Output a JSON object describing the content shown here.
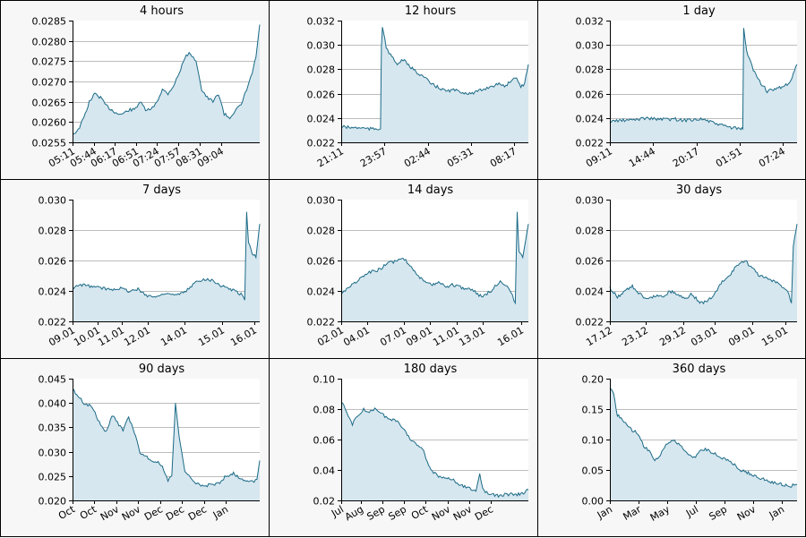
{
  "chart_data": [
    {
      "type": "area",
      "title": "4 hours",
      "ylim": [
        0.0255,
        0.0285
      ],
      "yticks": [
        "0.0255",
        "0.0260",
        "0.0265",
        "0.0270",
        "0.0275",
        "0.0280",
        "0.0285"
      ],
      "xticks": [
        "05:11",
        "05:44",
        "06:17",
        "06:51",
        "07:24",
        "07:57",
        "08:31",
        "09:04"
      ],
      "xtick_pos": [
        0,
        0.1125,
        0.225,
        0.34,
        0.452,
        0.565,
        0.68,
        0.793
      ],
      "grid": true,
      "series": [
        {
          "x": [
            0,
            0.03,
            0.06,
            0.09,
            0.12,
            0.15,
            0.18,
            0.21,
            0.24,
            0.27,
            0.3,
            0.33,
            0.36,
            0.39,
            0.42,
            0.45,
            0.48,
            0.51,
            0.54,
            0.57,
            0.6,
            0.63,
            0.66,
            0.69,
            0.72,
            0.75,
            0.78,
            0.81,
            0.84,
            0.87,
            0.9,
            0.93,
            0.96,
            0.98,
            1.0
          ],
          "values": [
            0.0257,
            0.0258,
            0.0261,
            0.0265,
            0.0267,
            0.0266,
            0.0264,
            0.0263,
            0.0262,
            0.0262,
            0.0263,
            0.0263,
            0.0265,
            0.0263,
            0.0263,
            0.0265,
            0.0268,
            0.0267,
            0.0269,
            0.0272,
            0.0276,
            0.0277,
            0.0275,
            0.0268,
            0.0266,
            0.0265,
            0.0267,
            0.0262,
            0.0261,
            0.0263,
            0.0264,
            0.0268,
            0.0272,
            0.0276,
            0.0284
          ]
        }
      ]
    },
    {
      "type": "area",
      "title": "12 hours",
      "ylim": [
        0.022,
        0.032
      ],
      "yticks": [
        "0.022",
        "0.024",
        "0.026",
        "0.028",
        "0.030",
        "0.032"
      ],
      "xticks": [
        "21:11",
        "23:57",
        "02:44",
        "05:31",
        "08:17"
      ],
      "xtick_pos": [
        0,
        0.231,
        0.463,
        0.694,
        0.925
      ],
      "grid": true,
      "series": [
        {
          "x": [
            0,
            0.05,
            0.1,
            0.15,
            0.19,
            0.21,
            0.215,
            0.22,
            0.24,
            0.27,
            0.3,
            0.33,
            0.36,
            0.4,
            0.44,
            0.48,
            0.52,
            0.56,
            0.6,
            0.65,
            0.7,
            0.75,
            0.8,
            0.85,
            0.88,
            0.9,
            0.93,
            0.96,
            0.98,
            1.0
          ],
          "values": [
            0.0233,
            0.0232,
            0.0232,
            0.0231,
            0.0231,
            0.0231,
            0.03,
            0.0315,
            0.0298,
            0.029,
            0.0284,
            0.0288,
            0.0283,
            0.0278,
            0.0274,
            0.0268,
            0.0265,
            0.0262,
            0.0263,
            0.0261,
            0.026,
            0.0263,
            0.0266,
            0.0268,
            0.0266,
            0.027,
            0.0274,
            0.0266,
            0.0268,
            0.0284
          ]
        }
      ]
    },
    {
      "type": "area",
      "title": "1 day",
      "ylim": [
        0.022,
        0.032
      ],
      "yticks": [
        "0.022",
        "0.024",
        "0.026",
        "0.028",
        "0.030",
        "0.032"
      ],
      "xticks": [
        "09:11",
        "14:44",
        "20:17",
        "01:51",
        "07:24"
      ],
      "xtick_pos": [
        0,
        0.231,
        0.463,
        0.694,
        0.925
      ],
      "grid": true,
      "series": [
        {
          "x": [
            0,
            0.05,
            0.1,
            0.15,
            0.2,
            0.25,
            0.3,
            0.35,
            0.4,
            0.45,
            0.5,
            0.55,
            0.6,
            0.65,
            0.7,
            0.71,
            0.715,
            0.73,
            0.76,
            0.8,
            0.84,
            0.88,
            0.92,
            0.96,
            1.0
          ],
          "values": [
            0.0237,
            0.0238,
            0.0238,
            0.0239,
            0.024,
            0.0239,
            0.0239,
            0.0239,
            0.0238,
            0.0239,
            0.0239,
            0.0236,
            0.0234,
            0.0232,
            0.0231,
            0.0231,
            0.0314,
            0.0295,
            0.0282,
            0.027,
            0.0262,
            0.0263,
            0.0266,
            0.0268,
            0.0284
          ]
        }
      ]
    },
    {
      "type": "area",
      "title": "7 days",
      "ylim": [
        0.022,
        0.03
      ],
      "yticks": [
        "0.022",
        "0.024",
        "0.026",
        "0.028",
        "0.030"
      ],
      "xticks": [
        "09.01",
        "10.01",
        "11.01",
        "12.01",
        "14.01",
        "15.01",
        "16.01"
      ],
      "xtick_pos": [
        0,
        0.132,
        0.264,
        0.4,
        0.6,
        0.8,
        0.97
      ],
      "grid": true,
      "series": [
        {
          "x": [
            0,
            0.05,
            0.1,
            0.15,
            0.2,
            0.25,
            0.3,
            0.35,
            0.4,
            0.45,
            0.5,
            0.55,
            0.6,
            0.65,
            0.7,
            0.75,
            0.8,
            0.85,
            0.9,
            0.92,
            0.93,
            0.94,
            0.96,
            0.98,
            1.0
          ],
          "values": [
            0.0242,
            0.0244,
            0.0243,
            0.0242,
            0.0241,
            0.0242,
            0.024,
            0.0241,
            0.0237,
            0.0236,
            0.0239,
            0.0237,
            0.0239,
            0.0245,
            0.0248,
            0.0247,
            0.0243,
            0.0241,
            0.0238,
            0.0234,
            0.0292,
            0.0272,
            0.0265,
            0.0262,
            0.0284
          ]
        }
      ]
    },
    {
      "type": "area",
      "title": "14 days",
      "ylim": [
        0.022,
        0.03
      ],
      "yticks": [
        "0.022",
        "0.024",
        "0.026",
        "0.028",
        "0.030"
      ],
      "xticks": [
        "02.01",
        "04.01",
        "07.01",
        "09.01",
        "11.01",
        "13.01",
        "16.01"
      ],
      "xtick_pos": [
        0,
        0.14,
        0.335,
        0.475,
        0.615,
        0.755,
        0.96
      ],
      "grid": true,
      "series": [
        {
          "x": [
            0,
            0.05,
            0.1,
            0.15,
            0.2,
            0.25,
            0.3,
            0.33,
            0.36,
            0.4,
            0.44,
            0.48,
            0.52,
            0.56,
            0.6,
            0.65,
            0.7,
            0.75,
            0.8,
            0.85,
            0.9,
            0.93,
            0.94,
            0.95,
            0.97,
            1.0
          ],
          "values": [
            0.0239,
            0.0243,
            0.0248,
            0.0252,
            0.0254,
            0.0258,
            0.026,
            0.0262,
            0.0258,
            0.0252,
            0.0246,
            0.0244,
            0.0246,
            0.0243,
            0.0244,
            0.0242,
            0.0241,
            0.0236,
            0.024,
            0.0247,
            0.0241,
            0.0232,
            0.0292,
            0.0265,
            0.0262,
            0.0284
          ]
        }
      ]
    },
    {
      "type": "area",
      "title": "30 days",
      "ylim": [
        0.022,
        0.03
      ],
      "yticks": [
        "0.022",
        "0.024",
        "0.026",
        "0.028",
        "0.030"
      ],
      "xticks": [
        "17.12",
        "23.12",
        "29.12",
        "03.01",
        "09.01",
        "15.01"
      ],
      "xtick_pos": [
        0,
        0.19,
        0.39,
        0.56,
        0.76,
        0.94
      ],
      "grid": true,
      "series": [
        {
          "x": [
            0,
            0.04,
            0.08,
            0.12,
            0.16,
            0.2,
            0.24,
            0.28,
            0.32,
            0.36,
            0.4,
            0.44,
            0.48,
            0.52,
            0.56,
            0.6,
            0.64,
            0.68,
            0.72,
            0.76,
            0.8,
            0.84,
            0.88,
            0.92,
            0.95,
            0.97,
            0.98,
            1.0
          ],
          "values": [
            0.0242,
            0.0236,
            0.024,
            0.0243,
            0.0238,
            0.0234,
            0.0237,
            0.0236,
            0.024,
            0.0238,
            0.0235,
            0.0238,
            0.0232,
            0.0233,
            0.0238,
            0.0246,
            0.025,
            0.0257,
            0.026,
            0.0255,
            0.025,
            0.0248,
            0.0246,
            0.0243,
            0.024,
            0.0232,
            0.027,
            0.0284
          ]
        }
      ]
    },
    {
      "type": "area",
      "title": "90 days",
      "ylim": [
        0.02,
        0.045
      ],
      "yticks": [
        "0.020",
        "0.025",
        "0.030",
        "0.035",
        "0.040",
        "0.045"
      ],
      "xticks": [
        "Oct",
        "Oct",
        "Nov",
        "Nov",
        "Dec",
        "Dec",
        "Dec",
        "Jan"
      ],
      "xtick_pos": [
        0,
        0.117,
        0.234,
        0.351,
        0.468,
        0.585,
        0.702,
        0.82
      ],
      "grid": true,
      "series": [
        {
          "x": [
            0,
            0.03,
            0.06,
            0.09,
            0.12,
            0.15,
            0.18,
            0.21,
            0.24,
            0.27,
            0.3,
            0.33,
            0.36,
            0.39,
            0.42,
            0.45,
            0.48,
            0.51,
            0.53,
            0.55,
            0.57,
            0.6,
            0.63,
            0.66,
            0.7,
            0.74,
            0.78,
            0.82,
            0.86,
            0.9,
            0.94,
            0.97,
            0.985,
            1.0
          ],
          "values": [
            0.0428,
            0.0415,
            0.04,
            0.0395,
            0.038,
            0.0355,
            0.034,
            0.0375,
            0.036,
            0.0345,
            0.037,
            0.034,
            0.03,
            0.029,
            0.0282,
            0.028,
            0.027,
            0.024,
            0.025,
            0.04,
            0.033,
            0.026,
            0.0245,
            0.0235,
            0.023,
            0.0232,
            0.0235,
            0.025,
            0.0255,
            0.0245,
            0.024,
            0.0238,
            0.0245,
            0.0282
          ]
        }
      ]
    },
    {
      "type": "area",
      "title": "180 days",
      "ylim": [
        0.02,
        0.1
      ],
      "yticks": [
        "0.02",
        "0.04",
        "0.06",
        "0.08",
        "0.10"
      ],
      "xticks": [
        "Jul",
        "Aug",
        "Sep",
        "Sep",
        "Oct",
        "Nov",
        "Nov",
        "Dec"
      ],
      "xtick_pos": [
        0,
        0.107,
        0.222,
        0.337,
        0.452,
        0.567,
        0.682,
        0.797
      ],
      "grid": true,
      "series": [
        {
          "x": [
            0,
            0.03,
            0.06,
            0.09,
            0.12,
            0.15,
            0.18,
            0.21,
            0.24,
            0.27,
            0.3,
            0.33,
            0.36,
            0.39,
            0.42,
            0.44,
            0.46,
            0.48,
            0.52,
            0.56,
            0.6,
            0.64,
            0.68,
            0.72,
            0.74,
            0.75,
            0.77,
            0.8,
            0.84,
            0.88,
            0.92,
            0.96,
            1.0
          ],
          "values": [
            0.085,
            0.078,
            0.07,
            0.076,
            0.08,
            0.078,
            0.08,
            0.077,
            0.075,
            0.073,
            0.072,
            0.068,
            0.062,
            0.058,
            0.055,
            0.052,
            0.045,
            0.04,
            0.036,
            0.035,
            0.033,
            0.03,
            0.028,
            0.026,
            0.038,
            0.03,
            0.026,
            0.024,
            0.023,
            0.024,
            0.024,
            0.024,
            0.027
          ]
        }
      ]
    },
    {
      "type": "area",
      "title": "360 days",
      "ylim": [
        0.0,
        0.2
      ],
      "yticks": [
        "0.00",
        "0.05",
        "0.10",
        "0.15",
        "0.20"
      ],
      "xticks": [
        "Jan",
        "Mar",
        "May",
        "Jul",
        "Sep",
        "Nov",
        "Jan"
      ],
      "xtick_pos": [
        0,
        0.153,
        0.306,
        0.459,
        0.612,
        0.765,
        0.918
      ],
      "grid": true,
      "series": [
        {
          "x": [
            0,
            0.02,
            0.04,
            0.06,
            0.09,
            0.12,
            0.15,
            0.18,
            0.21,
            0.24,
            0.27,
            0.3,
            0.33,
            0.36,
            0.39,
            0.42,
            0.45,
            0.48,
            0.51,
            0.54,
            0.57,
            0.6,
            0.63,
            0.66,
            0.7,
            0.74,
            0.78,
            0.82,
            0.86,
            0.9,
            0.94,
            0.97,
            1.0
          ],
          "values": [
            0.185,
            0.175,
            0.14,
            0.135,
            0.125,
            0.115,
            0.11,
            0.09,
            0.08,
            0.065,
            0.075,
            0.09,
            0.1,
            0.095,
            0.085,
            0.075,
            0.07,
            0.08,
            0.085,
            0.08,
            0.075,
            0.07,
            0.065,
            0.06,
            0.05,
            0.045,
            0.04,
            0.035,
            0.03,
            0.028,
            0.025,
            0.024,
            0.026
          ]
        }
      ]
    }
  ]
}
